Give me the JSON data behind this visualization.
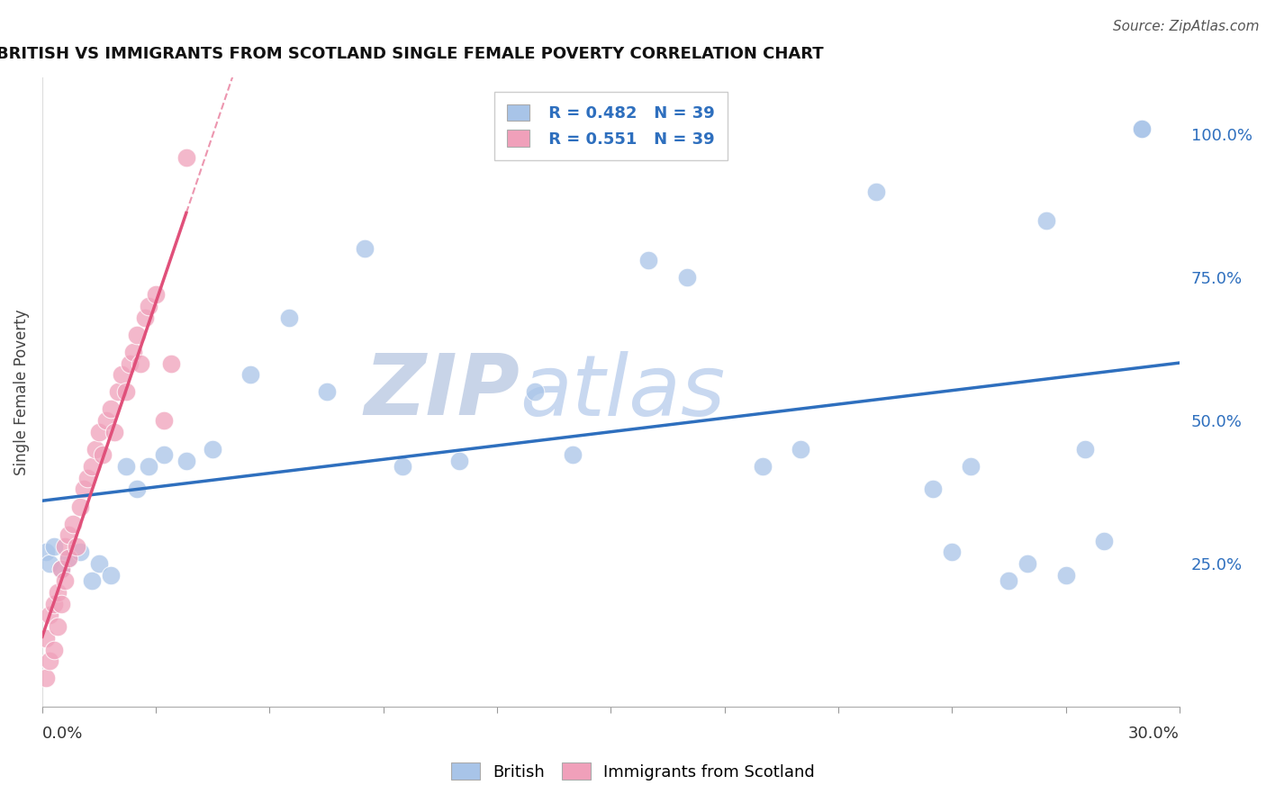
{
  "title": "BRITISH VS IMMIGRANTS FROM SCOTLAND SINGLE FEMALE POVERTY CORRELATION CHART",
  "source": "Source: ZipAtlas.com",
  "ylabel": "Single Female Poverty",
  "r_british": 0.482,
  "r_scotland": 0.551,
  "n_british": 39,
  "n_scotland": 39,
  "british_color": "#a8c4e8",
  "scotland_color": "#f0a0ba",
  "british_line_color": "#2e6fbe",
  "scotland_line_color": "#e0507a",
  "watermark_zip_color": "#c8d4e8",
  "watermark_atlas_color": "#c8d8f0",
  "xmin": 0.0,
  "xmax": 0.3,
  "ymin": 0.0,
  "ymax": 1.1,
  "ytick_vals": [
    0.25,
    0.5,
    0.75,
    1.0
  ],
  "ytick_labels": [
    "25.0%",
    "50.0%",
    "75.0%",
    "100.0%"
  ],
  "grid_color": "#cccccc",
  "british_x": [
    0.001,
    0.002,
    0.003,
    0.005,
    0.007,
    0.01,
    0.013,
    0.015,
    0.018,
    0.022,
    0.025,
    0.028,
    0.032,
    0.038,
    0.045,
    0.055,
    0.065,
    0.075,
    0.085,
    0.095,
    0.11,
    0.13,
    0.14,
    0.16,
    0.17,
    0.19,
    0.2,
    0.22,
    0.235,
    0.245,
    0.255,
    0.265,
    0.275,
    0.28,
    0.29,
    0.29,
    0.27,
    0.26,
    0.24
  ],
  "british_y": [
    0.27,
    0.25,
    0.28,
    0.24,
    0.26,
    0.27,
    0.22,
    0.25,
    0.23,
    0.42,
    0.38,
    0.42,
    0.44,
    0.43,
    0.45,
    0.58,
    0.68,
    0.55,
    0.8,
    0.42,
    0.43,
    0.55,
    0.44,
    0.78,
    0.75,
    0.42,
    0.45,
    0.9,
    0.38,
    0.42,
    0.22,
    0.85,
    0.45,
    0.29,
    1.01,
    1.01,
    0.23,
    0.25,
    0.27
  ],
  "scotland_x": [
    0.001,
    0.001,
    0.002,
    0.002,
    0.003,
    0.003,
    0.004,
    0.004,
    0.005,
    0.005,
    0.006,
    0.006,
    0.007,
    0.007,
    0.008,
    0.009,
    0.01,
    0.011,
    0.012,
    0.013,
    0.014,
    0.015,
    0.016,
    0.017,
    0.018,
    0.019,
    0.02,
    0.021,
    0.022,
    0.023,
    0.024,
    0.025,
    0.026,
    0.027,
    0.028,
    0.03,
    0.032,
    0.034,
    0.038
  ],
  "scotland_y": [
    0.05,
    0.12,
    0.08,
    0.16,
    0.1,
    0.18,
    0.14,
    0.2,
    0.18,
    0.24,
    0.22,
    0.28,
    0.26,
    0.3,
    0.32,
    0.28,
    0.35,
    0.38,
    0.4,
    0.42,
    0.45,
    0.48,
    0.44,
    0.5,
    0.52,
    0.48,
    0.55,
    0.58,
    0.55,
    0.6,
    0.62,
    0.65,
    0.6,
    0.68,
    0.7,
    0.72,
    0.5,
    0.6,
    0.96
  ]
}
